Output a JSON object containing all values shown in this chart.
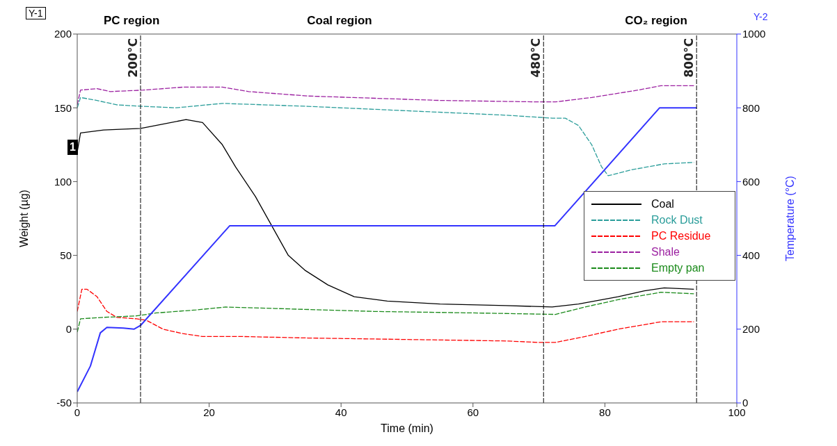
{
  "chart_data": {
    "type": "line",
    "xlabel": "Time (min)",
    "ylabel": "Weight (µg)",
    "y2label": "Temperature (°C)",
    "xlim": [
      0,
      100
    ],
    "xticks": [
      0,
      20,
      40,
      60,
      80,
      100
    ],
    "ylim": [
      -50,
      200
    ],
    "yticks": [
      -50,
      0,
      50,
      100,
      150,
      200
    ],
    "y2lim": [
      0,
      1000
    ],
    "y2ticks": [
      0,
      200,
      400,
      600,
      800,
      1000
    ],
    "legend": "right",
    "grid": false,
    "series": [
      {
        "name": "Coal",
        "color": "#000000",
        "line_style": "solid",
        "x": [
          0,
          0.5,
          4,
          9.6,
          13,
          16.5,
          19,
          22,
          24,
          27,
          29.5,
          32,
          34.5,
          38,
          42,
          47,
          55,
          65,
          72,
          76,
          82,
          86,
          89,
          93.5
        ],
        "values": [
          120,
          133,
          135,
          136,
          139,
          142,
          140,
          125,
          110,
          90,
          70,
          50,
          40,
          30,
          22,
          19,
          17,
          16,
          15,
          17,
          22,
          26,
          28,
          27
        ]
      },
      {
        "name": "Rock Dust",
        "color": "#2a9d9a",
        "line_style": "dashed",
        "x": [
          0,
          0.5,
          3,
          6,
          10,
          15,
          22,
          35,
          50,
          65,
          72,
          74,
          76,
          78,
          79.5,
          80.5,
          84,
          89,
          93.5
        ],
        "values": [
          150,
          157,
          155,
          152,
          151,
          150,
          153,
          151,
          148,
          145,
          143,
          143,
          138,
          125,
          110,
          104,
          108,
          112,
          113
        ]
      },
      {
        "name": "PC Residue",
        "color": "#ff0000",
        "line_style": "dashed",
        "x": [
          0,
          0.7,
          1.5,
          3,
          4.5,
          6,
          9,
          10.5,
          13,
          16,
          19,
          25,
          35,
          50,
          65,
          70,
          72.5,
          77,
          82,
          88.5,
          93.5
        ],
        "values": [
          12,
          27,
          27,
          22,
          12,
          8,
          7,
          6,
          0,
          -3,
          -5,
          -5,
          -6,
          -7,
          -8,
          -9,
          -9,
          -5,
          0,
          5,
          5
        ]
      },
      {
        "name": "Shale",
        "color": "#9b1fa0",
        "line_style": "dashed",
        "x": [
          0,
          0.5,
          3,
          5,
          10,
          16,
          22,
          26,
          35,
          55,
          70,
          72.5,
          78,
          85,
          88.5,
          93.5
        ],
        "values": [
          152,
          162,
          163,
          161,
          162,
          164,
          164,
          161,
          158,
          155,
          154,
          154,
          157,
          162,
          165,
          165
        ]
      },
      {
        "name": "Empty pan",
        "color": "#1a8a1a",
        "line_style": "dashed",
        "x": [
          0,
          0.5,
          4,
          9,
          12,
          18,
          22.5,
          30,
          45,
          60,
          72.5,
          77,
          82,
          88.5,
          93.5
        ],
        "values": [
          -2,
          7,
          8,
          9,
          11,
          13,
          15,
          14,
          12,
          11,
          10,
          15,
          20,
          25,
          24
        ]
      },
      {
        "color": "#3333ff",
        "line_style": "solid",
        "axis": "y2",
        "x": [
          0,
          2,
          3.5,
          4.5,
          7,
          8.6,
          9.6,
          23.1,
          25,
          72.4,
          88.3,
          93.9
        ],
        "values": [
          30,
          100,
          190,
          205,
          203,
          200,
          210,
          480,
          480,
          480,
          800,
          800
        ]
      }
    ],
    "ref_lines": [
      {
        "axis": "x",
        "value": 9.6,
        "label": "200°C",
        "color": "#000000",
        "line_style": "dashed"
      },
      {
        "axis": "x",
        "value": 70.7,
        "label": "480°C",
        "color": "#000000",
        "line_style": "dashed"
      },
      {
        "axis": "x",
        "value": 93.9,
        "label": "800°C",
        "color": "#000000",
        "line_style": "dashed"
      }
    ],
    "annotations": [
      "PC region",
      "Coal region",
      "CO₂ region",
      "Y-1",
      "Y-2",
      {
        "text": "1",
        "x": 0,
        "y": 123
      }
    ]
  }
}
